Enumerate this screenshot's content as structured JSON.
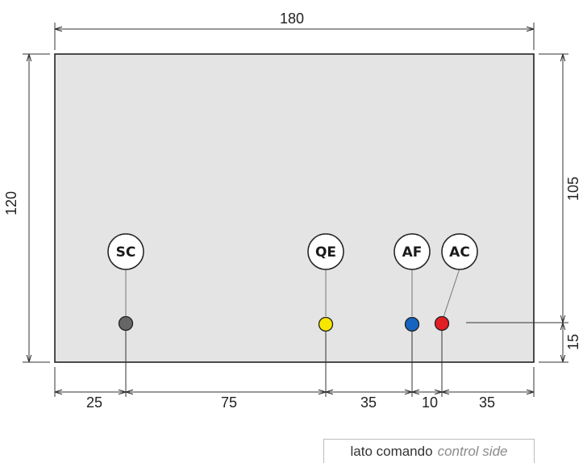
{
  "dimensions": {
    "overall_width": "180",
    "overall_height": "120",
    "right_upper": "105",
    "right_lower": "15",
    "bottom_segments": [
      "25",
      "75",
      "35",
      "10",
      "35"
    ]
  },
  "connections": [
    {
      "label": "SC",
      "color": "#666666"
    },
    {
      "label": "QE",
      "color": "#f7e600"
    },
    {
      "label": "AF",
      "color": "#1565c0"
    },
    {
      "label": "AC",
      "color": "#e31e24"
    }
  ],
  "legend": {
    "primary": "lato comando",
    "secondary": "control side"
  },
  "colors": {
    "panel_fill": "#e4e4e4",
    "panel_stroke": "#222222",
    "line": "#333333"
  }
}
